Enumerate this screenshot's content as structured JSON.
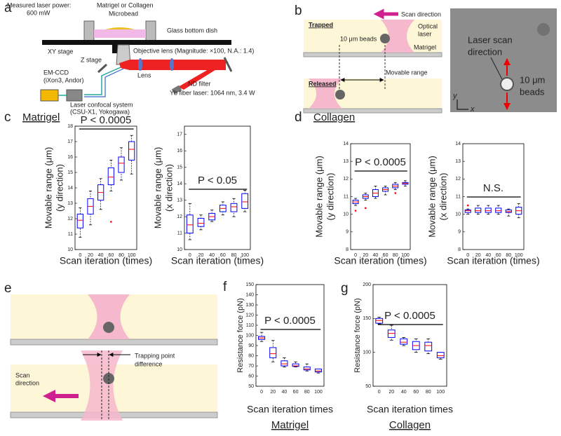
{
  "panel_a": {
    "letter": "a",
    "labels": [
      "Measured laser power:",
      "600 mW",
      "Matrigel or Collagen",
      "Microbead",
      "Glass bottom dish",
      "XY stage",
      "Z stage",
      "Objective lens (Magnitude: ×100, N.A.: 1.4)",
      "Lens",
      "ND filter",
      "Yb fiber laser: 1064 nm, 3.4 W",
      "EM-CCD",
      "(iXon3, Andor)",
      "Laser confocal system",
      "(CSU-X1, Yokogawa)"
    ]
  },
  "panel_b": {
    "letter": "b",
    "labels": [
      "Scan direction",
      "Trapped",
      "Optical",
      "laser",
      "10 μm beads",
      "Matrigel",
      "Released",
      "Movable range"
    ],
    "image_labels": [
      "Laser scan",
      "direction",
      "10 μm",
      "beads",
      "y",
      "x"
    ]
  },
  "panel_c": {
    "letter": "c",
    "title": "Matrigel"
  },
  "panel_d": {
    "letter": "d",
    "title": "Collagen"
  },
  "panel_e": {
    "letter": "e",
    "labels": [
      "Scan",
      "direction",
      "Trapping point",
      "difference"
    ]
  },
  "panel_f": {
    "letter": "f"
  },
  "panel_g": {
    "letter": "g"
  },
  "chart_data": [
    {
      "type": "box",
      "ylabel": [
        "Movable range (μm)",
        "(y direction)"
      ],
      "xlabel": "Scan iteration (times)",
      "categories": [
        0,
        20,
        40,
        60,
        80,
        100
      ],
      "ylim": [
        10,
        18
      ],
      "yticks": [
        10,
        11,
        12,
        13,
        14,
        15,
        16,
        17,
        18
      ],
      "box_color": "#0000ff",
      "median_color": "#ff0000",
      "outlier_color": "#ff0000",
      "annotation": "P < 0.0005",
      "boxes": [
        {
          "low": 10.8,
          "q1": 11.4,
          "median": 11.9,
          "q3": 12.3,
          "high": 12.7
        },
        {
          "low": 11.6,
          "q1": 12.3,
          "median": 12.8,
          "q3": 13.3,
          "high": 13.8
        },
        {
          "low": 12.6,
          "q1": 13.2,
          "median": 13.7,
          "q3": 14.2,
          "high": 14.6
        },
        {
          "low": 13.8,
          "q1": 14.2,
          "median": 14.7,
          "q3": 15.3,
          "high": 15.8
        },
        {
          "low": 14.5,
          "q1": 15.0,
          "median": 15.6,
          "q3": 16.0,
          "high": 16.6
        },
        {
          "low": 14.9,
          "q1": 15.8,
          "median": 16.5,
          "q3": 17.0,
          "high": 17.4
        }
      ],
      "outliers": [
        null,
        null,
        null,
        11.8,
        null,
        null
      ]
    },
    {
      "type": "box",
      "ylabel": [
        "Movable range (μm)",
        "(x direction)"
      ],
      "xlabel": "Scan iteration (times)",
      "categories": [
        0,
        20,
        40,
        60,
        80,
        100
      ],
      "ylim": [
        10,
        17.5
      ],
      "yticks": [
        10,
        11,
        12,
        13,
        14,
        15,
        16,
        17
      ],
      "box_color": "#0000ff",
      "median_color": "#ff0000",
      "outlier_color": "#ff0000",
      "annotation": "P < 0.05",
      "boxes": [
        {
          "low": 10.6,
          "q1": 11.0,
          "median": 11.5,
          "q3": 12.1,
          "high": 12.8
        },
        {
          "low": 11.2,
          "q1": 11.4,
          "median": 11.6,
          "q3": 11.9,
          "high": 12.1
        },
        {
          "low": 11.7,
          "q1": 11.8,
          "median": 12.0,
          "q3": 12.2,
          "high": 12.4
        },
        {
          "low": 12.1,
          "q1": 12.3,
          "median": 12.5,
          "q3": 12.7,
          "high": 12.9
        },
        {
          "low": 12.0,
          "q1": 12.3,
          "median": 12.6,
          "q3": 12.8,
          "high": 13.1
        },
        {
          "low": 12.3,
          "q1": 12.5,
          "median": 12.9,
          "q3": 13.4,
          "high": 13.6
        }
      ],
      "outliers": [
        null,
        null,
        null,
        null,
        null,
        null
      ]
    },
    {
      "type": "box",
      "ylabel": [
        "Movable range (μm)",
        "(y direction)"
      ],
      "xlabel": "Scan iteration (times)",
      "categories": [
        0,
        20,
        40,
        60,
        80,
        100
      ],
      "ylim": [
        8,
        14
      ],
      "yticks": [
        8,
        9,
        10,
        11,
        12,
        13,
        14
      ],
      "box_color": "#0000ff",
      "median_color": "#ff0000",
      "outlier_color": "#ff0000",
      "annotation": "P < 0.0005",
      "boxes": [
        {
          "low": 10.5,
          "q1": 10.6,
          "median": 10.7,
          "q3": 10.8,
          "high": 10.9
        },
        {
          "low": 10.8,
          "q1": 10.9,
          "median": 11.0,
          "q3": 11.1,
          "high": 11.2
        },
        {
          "low": 10.9,
          "q1": 11.0,
          "median": 11.2,
          "q3": 11.4,
          "high": 11.6
        },
        {
          "low": 11.1,
          "q1": 11.3,
          "median": 11.4,
          "q3": 11.5,
          "high": 11.6
        },
        {
          "low": 11.4,
          "q1": 11.5,
          "median": 11.6,
          "q3": 11.7,
          "high": 11.8
        },
        {
          "low": 11.6,
          "q1": 11.7,
          "median": 11.75,
          "q3": 11.8,
          "high": 11.9
        }
      ],
      "outliers": [
        10.2,
        10.35,
        null,
        null,
        11.2,
        null
      ]
    },
    {
      "type": "box",
      "ylabel": [
        "Movable range (μm)",
        "(x direction)"
      ],
      "xlabel": "Scan iteration (times)",
      "categories": [
        0,
        20,
        40,
        60,
        80,
        100
      ],
      "ylim": [
        8,
        14
      ],
      "yticks": [
        8,
        9,
        10,
        11,
        12,
        13,
        14
      ],
      "box_color": "#0000ff",
      "median_color": "#ff0000",
      "outlier_color": "#ff0000",
      "annotation": "N.S.",
      "boxes": [
        {
          "low": 10.0,
          "q1": 10.1,
          "median": 10.2,
          "q3": 10.25,
          "high": 10.3
        },
        {
          "low": 10.0,
          "q1": 10.1,
          "median": 10.2,
          "q3": 10.35,
          "high": 10.5
        },
        {
          "low": 10.0,
          "q1": 10.1,
          "median": 10.2,
          "q3": 10.35,
          "high": 10.5
        },
        {
          "low": 10.0,
          "q1": 10.1,
          "median": 10.2,
          "q3": 10.35,
          "high": 10.5
        },
        {
          "low": 9.9,
          "q1": 10.1,
          "median": 10.15,
          "q3": 10.25,
          "high": 10.3
        },
        {
          "low": 9.8,
          "q1": 10.0,
          "median": 10.2,
          "q3": 10.4,
          "high": 10.6
        }
      ],
      "outliers": [
        10.5,
        null,
        null,
        null,
        null,
        null
      ]
    },
    {
      "type": "box",
      "ylabel": [
        "Resistance force (pN)"
      ],
      "xlabel": "Scan iteration times",
      "subtitle": "Matrigel",
      "categories": [
        0,
        20,
        40,
        60,
        80,
        100
      ],
      "ylim": [
        50,
        150
      ],
      "yticks": [
        50,
        60,
        70,
        80,
        90,
        100,
        110,
        120,
        130,
        140,
        150
      ],
      "box_color": "#0000ff",
      "median_color": "#ff0000",
      "outlier_color": "#ff0000",
      "annotation": "P < 0.0005",
      "boxes": [
        {
          "low": 94,
          "q1": 96,
          "median": 97.5,
          "q3": 99,
          "high": 103
        },
        {
          "low": 74,
          "q1": 78,
          "median": 82,
          "q3": 88,
          "high": 95
        },
        {
          "low": 69,
          "q1": 70,
          "median": 72,
          "q3": 75,
          "high": 78
        },
        {
          "low": 69,
          "q1": 69.5,
          "median": 70,
          "q3": 72,
          "high": 74
        },
        {
          "low": 65,
          "q1": 66,
          "median": 67,
          "q3": 69,
          "high": 72
        },
        {
          "low": 63,
          "q1": 64,
          "median": 65,
          "q3": 67,
          "high": 67
        }
      ],
      "outliers": [
        null,
        null,
        null,
        null,
        null,
        null
      ]
    },
    {
      "type": "box",
      "ylabel": [
        "Resistance force (pN)"
      ],
      "xlabel": "Scan iteration times",
      "subtitle": "Collagen",
      "categories": [
        0,
        20,
        40,
        60,
        80,
        100
      ],
      "ylim": [
        50,
        200
      ],
      "yticks": [
        50,
        100,
        150,
        200
      ],
      "box_color": "#0000ff",
      "median_color": "#ff0000",
      "outlier_color": "#ff0000",
      "annotation": "P < 0.0005",
      "boxes": [
        {
          "low": 142,
          "q1": 143,
          "median": 147,
          "q3": 150,
          "high": 152
        },
        {
          "low": 118,
          "q1": 122,
          "median": 128,
          "q3": 133,
          "high": 140
        },
        {
          "low": 110,
          "q1": 112,
          "median": 115,
          "q3": 120,
          "high": 122
        },
        {
          "low": 100,
          "q1": 104,
          "median": 110,
          "q3": 116,
          "high": 120
        },
        {
          "low": 98,
          "q1": 102,
          "median": 110,
          "q3": 115,
          "high": 120
        },
        {
          "low": 90,
          "q1": 92,
          "median": 95,
          "q3": 100,
          "high": 100
        }
      ],
      "outliers": [
        null,
        null,
        null,
        null,
        null,
        null
      ]
    }
  ]
}
